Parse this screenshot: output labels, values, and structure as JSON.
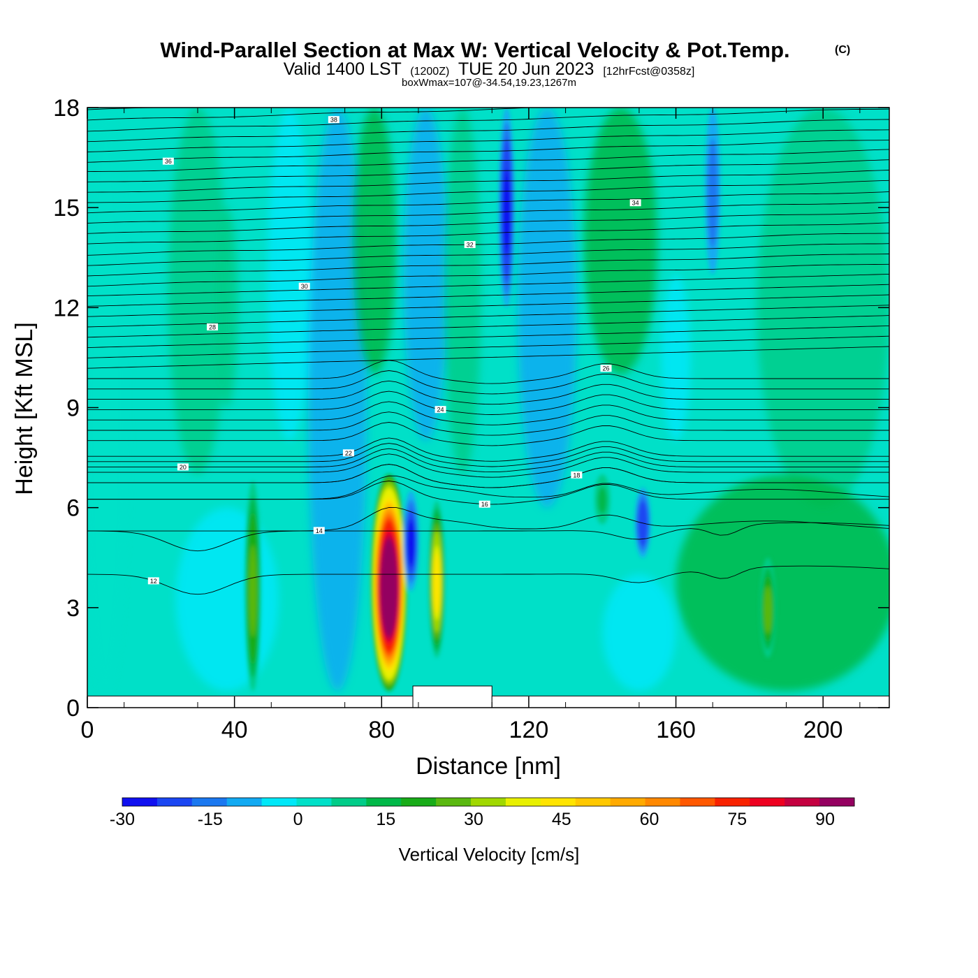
{
  "chart_data": {
    "type": "heatmap",
    "title": "Wind-Parallel Section at Max W: Vertical Velocity & Pot.Temp.",
    "title_mark": "(C)",
    "subtitle": {
      "main_a": "Valid 1400 LST",
      "zulu": "(1200Z)",
      "main_b": "TUE 20 Jun 2023",
      "forecast": "[12hrFcst@0358z]"
    },
    "box_info": "boxWmax=107@-34.54,19.23,1267m",
    "xlabel": "Distance [nm]",
    "ylabel": "Height [Kft MSL]",
    "xlim": [
      0,
      218
    ],
    "ylim": [
      0,
      18
    ],
    "xticks": [
      0,
      40,
      80,
      120,
      160,
      200
    ],
    "yticks": [
      0,
      3,
      6,
      9,
      12,
      15,
      18
    ],
    "grid": false,
    "colorbar": {
      "label": "Vertical Velocity [cm/s]",
      "range": [
        -30,
        95
      ],
      "ticks": [
        -30,
        -15,
        0,
        15,
        30,
        45,
        60,
        75,
        90
      ],
      "colors": [
        "#1010f0",
        "#1a46f2",
        "#1a78f0",
        "#12aaf2",
        "#00e8f8",
        "#00e0c8",
        "#00cc88",
        "#00b848",
        "#18ac18",
        "#5ab810",
        "#a0d800",
        "#e8f000",
        "#ffe400",
        "#ffc800",
        "#ffaa00",
        "#ff8800",
        "#ff5800",
        "#f82200",
        "#ee0020",
        "#c40040",
        "#940060"
      ]
    },
    "velocity_cells": [
      {
        "x": 45,
        "z_bottom": 0.5,
        "z_top": 6.8,
        "w": 28
      },
      {
        "x": 82,
        "z_bottom": 0.5,
        "z_top": 7.0,
        "w": 107
      },
      {
        "x": 95,
        "z_bottom": 1.5,
        "z_top": 6.2,
        "w": 45
      },
      {
        "x": 88,
        "z_bottom": 3.5,
        "z_top": 6.5,
        "w": -25
      },
      {
        "x": 114,
        "z_bottom": 12.0,
        "z_top": 18.0,
        "w": -28
      },
      {
        "x": 151,
        "z_bottom": 4.5,
        "z_top": 6.6,
        "w": -24
      },
      {
        "x": 170,
        "z_bottom": 13.0,
        "z_top": 18.0,
        "w": -14
      },
      {
        "x": 185,
        "z_bottom": 1.5,
        "z_top": 4.5,
        "w": 26
      },
      {
        "x": 140,
        "z_bottom": 5.5,
        "z_top": 7.0,
        "w": 16
      }
    ],
    "theta_contours": [
      {
        "level": 12,
        "label": "12"
      },
      {
        "level": 14,
        "label": "14"
      },
      {
        "level": 16,
        "label": "16"
      },
      {
        "level": 18,
        "label": "18"
      },
      {
        "level": 20,
        "label": "20"
      },
      {
        "level": 22,
        "label": "22"
      },
      {
        "level": 24,
        "label": "24"
      },
      {
        "level": 26,
        "label": "26"
      },
      {
        "level": 28,
        "label": "28"
      },
      {
        "level": 30,
        "label": "30"
      },
      {
        "level": 32,
        "label": "32"
      },
      {
        "level": 34,
        "label": "34"
      },
      {
        "level": 36,
        "label": "36"
      },
      {
        "level": 38,
        "label": "38"
      }
    ],
    "terrain": [
      {
        "x0": 0,
        "x1": 88.5,
        "top": 0.35
      },
      {
        "x0": 88.5,
        "x1": 110,
        "top": 0.65
      },
      {
        "x0": 110,
        "x1": 218,
        "top": 0.35
      }
    ]
  }
}
